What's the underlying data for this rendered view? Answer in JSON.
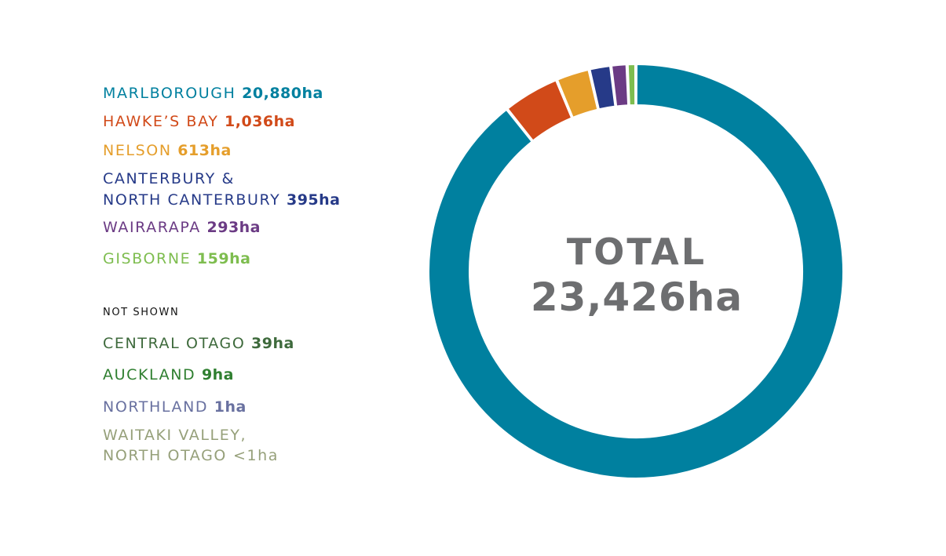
{
  "chart_data": {
    "type": "pie",
    "center_label": {
      "line1": "TOTAL",
      "line2": "23,426ha"
    },
    "slices": [
      {
        "name": "MARLBOROUGH",
        "value": 20880,
        "label": "20,880ha",
        "color": "#00809f"
      },
      {
        "name": "HAWKE’S BAY",
        "value": 1036,
        "label": "1,036ha",
        "color": "#d14a19"
      },
      {
        "name": "NELSON",
        "value": 613,
        "label": "613ha",
        "color": "#e59e2b"
      },
      {
        "name": "CANTERBURY &",
        "name2": "NORTH CANTERBURY",
        "value": 395,
        "label": "395ha",
        "color": "#263a88"
      },
      {
        "name": "WAIRARAPA",
        "value": 293,
        "label": "293ha",
        "color": "#6b3b84"
      },
      {
        "name": "GISBORNE",
        "value": 159,
        "label": "159ha",
        "color": "#7ebd4f"
      }
    ],
    "not_shown_label": "NOT SHOWN",
    "not_shown": [
      {
        "name": "CENTRAL OTAGO",
        "label": "39ha",
        "color": "#3e6a3c"
      },
      {
        "name": "AUCKLAND",
        "label": "9ha",
        "color": "#2f7f30"
      },
      {
        "name": "NORTHLAND",
        "label": "1ha",
        "color": "#6971a0"
      },
      {
        "name": "WAITAKI VALLEY,",
        "name2": "NORTH OTAGO",
        "label": "<1ha",
        "color": "#96a07a"
      }
    ]
  }
}
